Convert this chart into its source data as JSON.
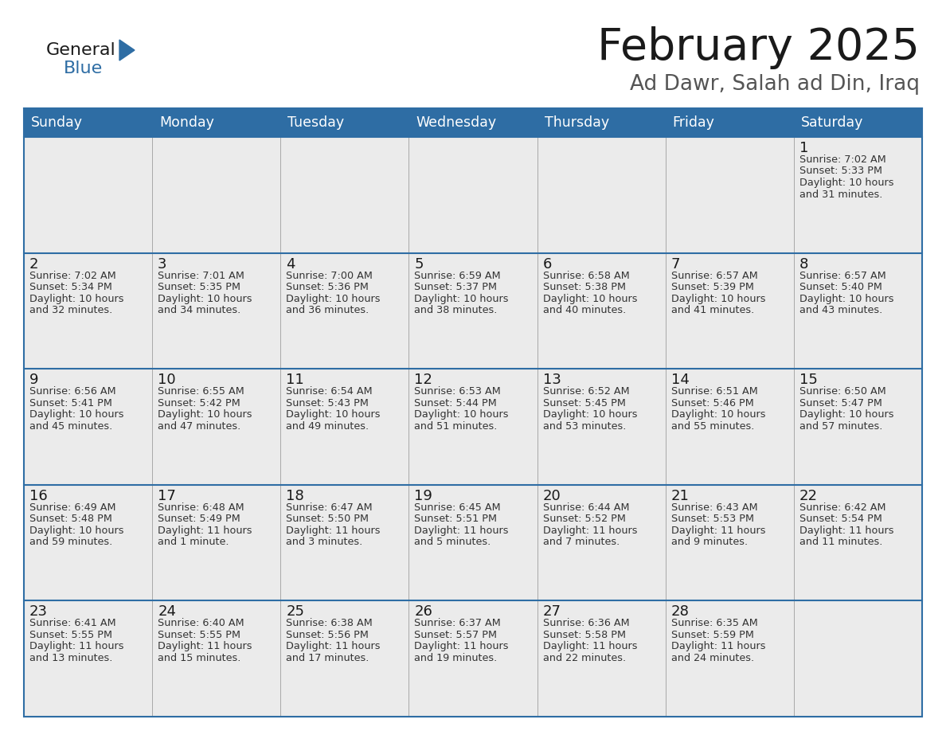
{
  "title": "February 2025",
  "subtitle": "Ad Dawr, Salah ad Din, Iraq",
  "days_of_week": [
    "Sunday",
    "Monday",
    "Tuesday",
    "Wednesday",
    "Thursday",
    "Friday",
    "Saturday"
  ],
  "header_bg": "#2E6DA4",
  "header_text": "#FFFFFF",
  "cell_bg": "#EBEBEB",
  "border_color": "#2E6DA4",
  "title_color": "#1a1a1a",
  "subtitle_color": "#555555",
  "day_number_color": "#1a1a1a",
  "cell_text_color": "#333333",
  "logo_general_color": "#1a1a1a",
  "logo_blue_color": "#2E6DA4",
  "logo_triangle_color": "#2E6DA4",
  "calendar_data": [
    [
      null,
      null,
      null,
      null,
      null,
      null,
      {
        "day": 1,
        "sunrise": "7:02 AM",
        "sunset": "5:33 PM",
        "daylight": "10 hours",
        "daylight2": "and 31 minutes."
      }
    ],
    [
      {
        "day": 2,
        "sunrise": "7:02 AM",
        "sunset": "5:34 PM",
        "daylight": "10 hours",
        "daylight2": "and 32 minutes."
      },
      {
        "day": 3,
        "sunrise": "7:01 AM",
        "sunset": "5:35 PM",
        "daylight": "10 hours",
        "daylight2": "and 34 minutes."
      },
      {
        "day": 4,
        "sunrise": "7:00 AM",
        "sunset": "5:36 PM",
        "daylight": "10 hours",
        "daylight2": "and 36 minutes."
      },
      {
        "day": 5,
        "sunrise": "6:59 AM",
        "sunset": "5:37 PM",
        "daylight": "10 hours",
        "daylight2": "and 38 minutes."
      },
      {
        "day": 6,
        "sunrise": "6:58 AM",
        "sunset": "5:38 PM",
        "daylight": "10 hours",
        "daylight2": "and 40 minutes."
      },
      {
        "day": 7,
        "sunrise": "6:57 AM",
        "sunset": "5:39 PM",
        "daylight": "10 hours",
        "daylight2": "and 41 minutes."
      },
      {
        "day": 8,
        "sunrise": "6:57 AM",
        "sunset": "5:40 PM",
        "daylight": "10 hours",
        "daylight2": "and 43 minutes."
      }
    ],
    [
      {
        "day": 9,
        "sunrise": "6:56 AM",
        "sunset": "5:41 PM",
        "daylight": "10 hours",
        "daylight2": "and 45 minutes."
      },
      {
        "day": 10,
        "sunrise": "6:55 AM",
        "sunset": "5:42 PM",
        "daylight": "10 hours",
        "daylight2": "and 47 minutes."
      },
      {
        "day": 11,
        "sunrise": "6:54 AM",
        "sunset": "5:43 PM",
        "daylight": "10 hours",
        "daylight2": "and 49 minutes."
      },
      {
        "day": 12,
        "sunrise": "6:53 AM",
        "sunset": "5:44 PM",
        "daylight": "10 hours",
        "daylight2": "and 51 minutes."
      },
      {
        "day": 13,
        "sunrise": "6:52 AM",
        "sunset": "5:45 PM",
        "daylight": "10 hours",
        "daylight2": "and 53 minutes."
      },
      {
        "day": 14,
        "sunrise": "6:51 AM",
        "sunset": "5:46 PM",
        "daylight": "10 hours",
        "daylight2": "and 55 minutes."
      },
      {
        "day": 15,
        "sunrise": "6:50 AM",
        "sunset": "5:47 PM",
        "daylight": "10 hours",
        "daylight2": "and 57 minutes."
      }
    ],
    [
      {
        "day": 16,
        "sunrise": "6:49 AM",
        "sunset": "5:48 PM",
        "daylight": "10 hours",
        "daylight2": "and 59 minutes."
      },
      {
        "day": 17,
        "sunrise": "6:48 AM",
        "sunset": "5:49 PM",
        "daylight": "11 hours",
        "daylight2": "and 1 minute."
      },
      {
        "day": 18,
        "sunrise": "6:47 AM",
        "sunset": "5:50 PM",
        "daylight": "11 hours",
        "daylight2": "and 3 minutes."
      },
      {
        "day": 19,
        "sunrise": "6:45 AM",
        "sunset": "5:51 PM",
        "daylight": "11 hours",
        "daylight2": "and 5 minutes."
      },
      {
        "day": 20,
        "sunrise": "6:44 AM",
        "sunset": "5:52 PM",
        "daylight": "11 hours",
        "daylight2": "and 7 minutes."
      },
      {
        "day": 21,
        "sunrise": "6:43 AM",
        "sunset": "5:53 PM",
        "daylight": "11 hours",
        "daylight2": "and 9 minutes."
      },
      {
        "day": 22,
        "sunrise": "6:42 AM",
        "sunset": "5:54 PM",
        "daylight": "11 hours",
        "daylight2": "and 11 minutes."
      }
    ],
    [
      {
        "day": 23,
        "sunrise": "6:41 AM",
        "sunset": "5:55 PM",
        "daylight": "11 hours",
        "daylight2": "and 13 minutes."
      },
      {
        "day": 24,
        "sunrise": "6:40 AM",
        "sunset": "5:55 PM",
        "daylight": "11 hours",
        "daylight2": "and 15 minutes."
      },
      {
        "day": 25,
        "sunrise": "6:38 AM",
        "sunset": "5:56 PM",
        "daylight": "11 hours",
        "daylight2": "and 17 minutes."
      },
      {
        "day": 26,
        "sunrise": "6:37 AM",
        "sunset": "5:57 PM",
        "daylight": "11 hours",
        "daylight2": "and 19 minutes."
      },
      {
        "day": 27,
        "sunrise": "6:36 AM",
        "sunset": "5:58 PM",
        "daylight": "11 hours",
        "daylight2": "and 22 minutes."
      },
      {
        "day": 28,
        "sunrise": "6:35 AM",
        "sunset": "5:59 PM",
        "daylight": "11 hours",
        "daylight2": "and 24 minutes."
      },
      null
    ]
  ]
}
